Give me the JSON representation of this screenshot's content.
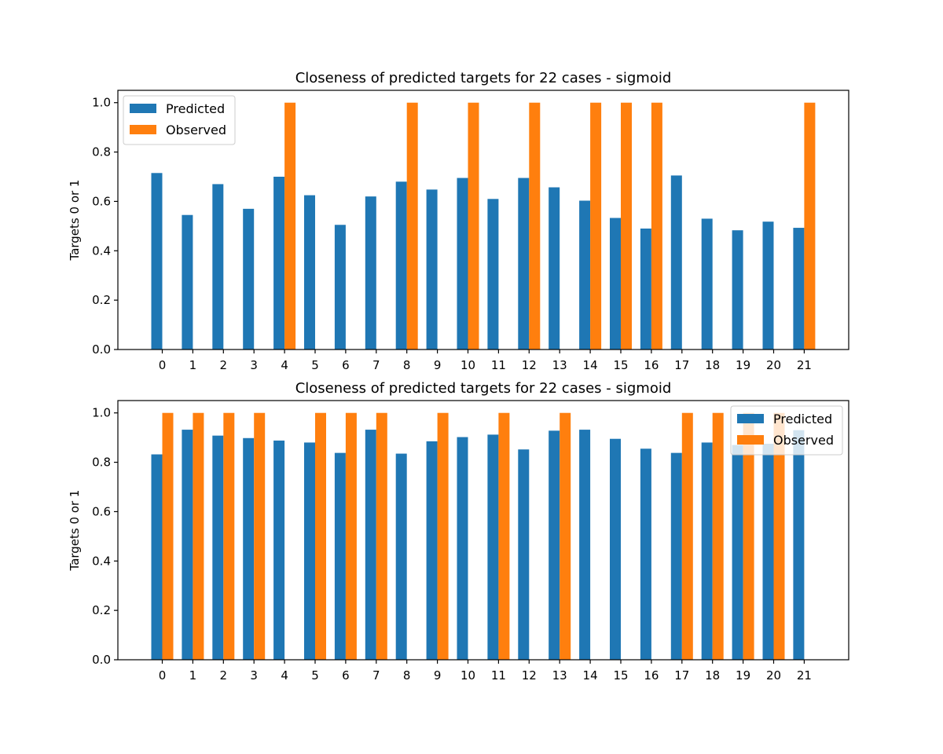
{
  "colors": {
    "predicted": "#1f77b4",
    "observed": "#ff7f0e"
  },
  "chart_data": [
    {
      "type": "bar",
      "title": "Closeness of predicted targets for 22 cases - sigmoid",
      "ylabel": "Targets 0 or 1",
      "xlabel": "",
      "ylim": [
        0,
        1.05
      ],
      "yticks": [
        "0.0",
        "0.2",
        "0.4",
        "0.6",
        "0.8",
        "1.0"
      ],
      "categories": [
        "0",
        "1",
        "2",
        "3",
        "4",
        "5",
        "6",
        "7",
        "8",
        "9",
        "10",
        "11",
        "12",
        "13",
        "14",
        "15",
        "16",
        "17",
        "18",
        "19",
        "20",
        "21"
      ],
      "legend_position": "top-left",
      "series": [
        {
          "name": "Predicted",
          "color": "#1f77b4",
          "values": [
            0.715,
            0.545,
            0.67,
            0.57,
            0.7,
            0.625,
            0.505,
            0.62,
            0.68,
            0.648,
            0.695,
            0.61,
            0.695,
            0.657,
            0.603,
            0.533,
            0.49,
            0.705,
            0.53,
            0.483,
            0.518,
            0.493
          ]
        },
        {
          "name": "Observed",
          "color": "#ff7f0e",
          "values": [
            0,
            0,
            0,
            0,
            1,
            0,
            0,
            0,
            1,
            0,
            1,
            0,
            1,
            0,
            1,
            1,
            1,
            0,
            0,
            0,
            0,
            1
          ]
        }
      ]
    },
    {
      "type": "bar",
      "title": "Closeness of predicted targets for 22 cases - sigmoid",
      "ylabel": "Targets 0 or 1",
      "xlabel": "",
      "ylim": [
        0,
        1.05
      ],
      "yticks": [
        "0.0",
        "0.2",
        "0.4",
        "0.6",
        "0.8",
        "1.0"
      ],
      "categories": [
        "0",
        "1",
        "2",
        "3",
        "4",
        "5",
        "6",
        "7",
        "8",
        "9",
        "10",
        "11",
        "12",
        "13",
        "14",
        "15",
        "16",
        "17",
        "18",
        "19",
        "20",
        "21"
      ],
      "legend_position": "top-right",
      "series": [
        {
          "name": "Predicted",
          "color": "#1f77b4",
          "values": [
            0.832,
            0.932,
            0.908,
            0.898,
            0.888,
            0.88,
            0.838,
            0.932,
            0.835,
            0.885,
            0.902,
            0.912,
            0.852,
            0.928,
            0.932,
            0.895,
            0.855,
            0.838,
            0.88,
            0.87,
            0.875,
            0.93
          ]
        },
        {
          "name": "Observed",
          "color": "#ff7f0e",
          "values": [
            1,
            1,
            1,
            1,
            0,
            1,
            1,
            1,
            0,
            1,
            0,
            1,
            0,
            1,
            0,
            0,
            0,
            1,
            1,
            1,
            1,
            0
          ]
        }
      ]
    }
  ]
}
